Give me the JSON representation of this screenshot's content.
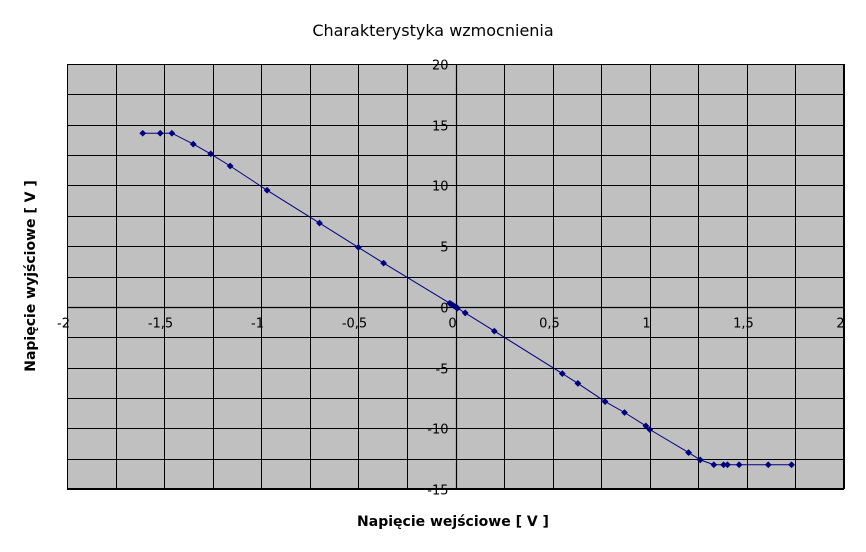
{
  "colors": {
    "plot_background": "#c0c0c0",
    "gridline": "#000000",
    "series": "#000080",
    "text": "#000000"
  },
  "chart_data": {
    "type": "scatter",
    "title": "Charakterystyka wzmocnienia",
    "xlabel": "Napięcie wejściowe [ V ]",
    "ylabel": "Napięcie wyjściowe [ V ]",
    "xlim": [
      -2,
      2
    ],
    "ylim": [
      -15,
      20
    ],
    "x_ticks": [
      -2,
      -1.5,
      -1,
      -0.5,
      0,
      0.5,
      1,
      1.5,
      2
    ],
    "x_tick_labels": [
      "-2",
      "-1,5",
      "-1",
      "-0,5",
      "0",
      "0,5",
      "1",
      "1,5",
      "2"
    ],
    "y_ticks": [
      -15,
      -10,
      -5,
      0,
      5,
      10,
      15,
      20
    ],
    "y_tick_labels": [
      "-15",
      "-10",
      "-5",
      "0",
      "5",
      "10",
      "15",
      "20"
    ],
    "x_minor_grid_step": 0.25,
    "y_minor_grid_step": 2.5,
    "grid": true,
    "legend": "none",
    "series": [
      {
        "x": [
          -1.61,
          -1.52,
          -1.46,
          -1.35,
          -1.26,
          -1.16,
          -0.97,
          -0.7,
          -0.5,
          -0.37,
          -0.03,
          -0.02,
          -0.01,
          0.0,
          0.01,
          0.05,
          0.2,
          0.55,
          0.63,
          0.77,
          0.87,
          0.98,
          1.0,
          1.2,
          1.26,
          1.33,
          1.38,
          1.4,
          1.46,
          1.61,
          1.73
        ],
        "y": [
          14.3,
          14.3,
          14.3,
          13.4,
          12.6,
          11.6,
          9.6,
          6.9,
          4.9,
          3.6,
          0.3,
          0.2,
          0.1,
          0.0,
          -0.1,
          -0.5,
          -2.0,
          -5.5,
          -6.3,
          -7.8,
          -8.7,
          -9.8,
          -10.1,
          -12.0,
          -12.6,
          -13.0,
          -13.0,
          -13.0,
          -13.0,
          -13.0,
          -13.0
        ]
      }
    ]
  }
}
